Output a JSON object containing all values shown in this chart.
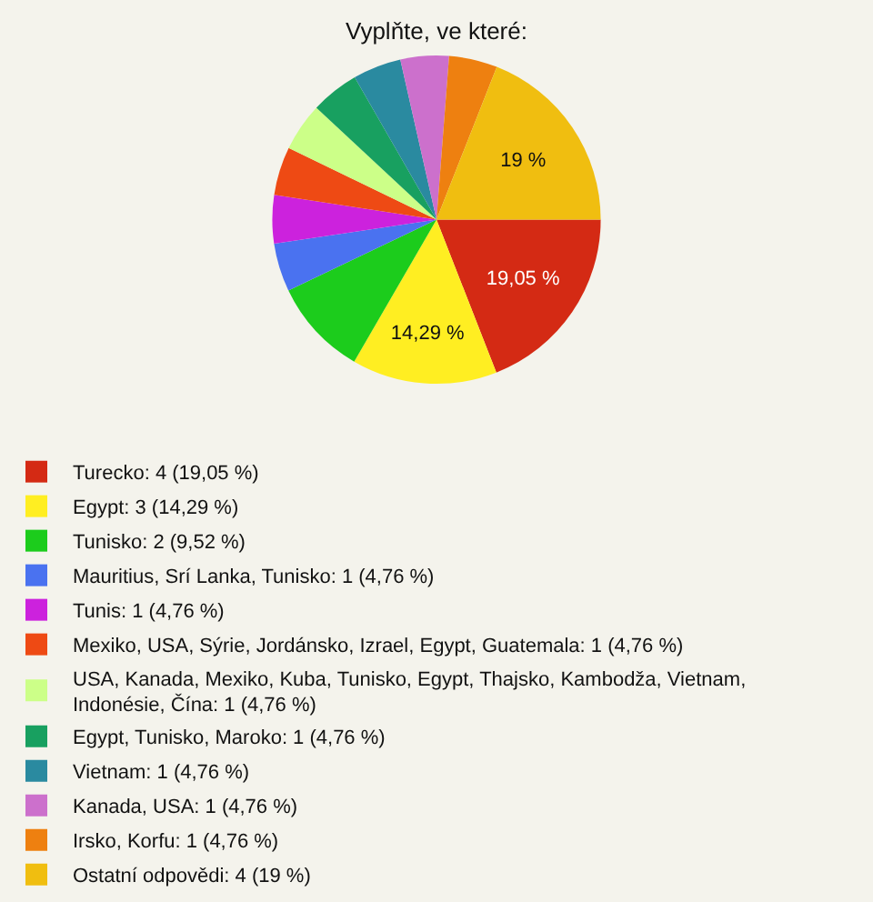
{
  "chart_data": {
    "type": "pie",
    "title": "Vyplňte, ve které:",
    "categories": [
      "Turecko: 4 (19,05 %)",
      "Egypt: 3 (14,29 %)",
      "Tunisko: 2 (9,52 %)",
      "Mauritius, Srí Lanka, Tunisko: 1 (4,76 %)",
      "Tunis: 1 (4,76 %)",
      "Mexiko, USA, Sýrie, Jordánsko, Izrael, Egypt, Guatemala: 1 (4,76 %)",
      "USA, Kanada, Mexiko, Kuba, Tunisko, Egypt, Thajsko, Kambodža, Vietnam, Indonésie, Čína: 1 (4,76 %)",
      "Egypt, Tunisko, Maroko: 1 (4,76 %)",
      "Vietnam: 1 (4,76 %)",
      "Kanada, USA: 1 (4,76 %)",
      "Irsko, Korfu: 1 (4,76 %)",
      "Ostatní odpovědi: 4 (19 %)"
    ],
    "values": [
      19.05,
      14.29,
      9.52,
      4.76,
      4.76,
      4.76,
      4.76,
      4.76,
      4.76,
      4.76,
      4.76,
      19
    ],
    "colors": [
      "#d42a14",
      "#ffee22",
      "#1ccc1c",
      "#4a72f0",
      "#cc22dd",
      "#ee4a14",
      "#ccff88",
      "#18a060",
      "#2a8aa0",
      "#cc70cc",
      "#ee8010",
      "#f0be10"
    ],
    "value_labels": [
      "19,05 %",
      "14,29 %",
      null,
      null,
      null,
      null,
      null,
      null,
      null,
      null,
      null,
      "19 %"
    ],
    "legend": "bottom"
  }
}
